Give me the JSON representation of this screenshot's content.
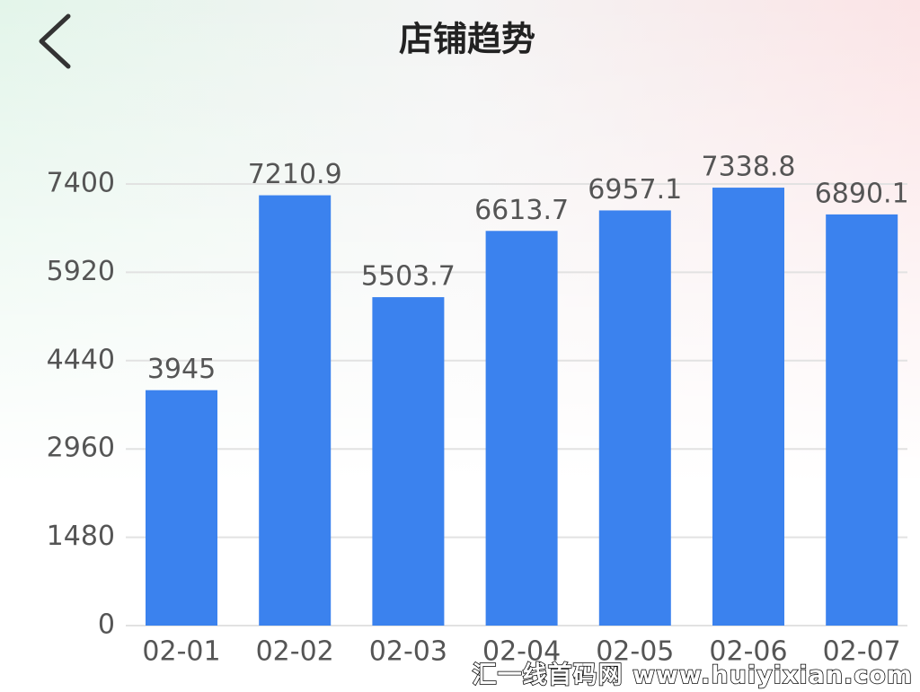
{
  "chart_data": {
    "type": "bar",
    "title": "店铺趋势",
    "categories": [
      "02-01",
      "02-02",
      "02-03",
      "02-04",
      "02-05",
      "02-06",
      "02-07"
    ],
    "values": [
      3945,
      7210.9,
      5503.7,
      6613.7,
      6957.1,
      7338.8,
      6890.1
    ],
    "color": "#3b82ee",
    "ylim": [
      0,
      7400
    ],
    "yticks": [
      0,
      1480,
      2960,
      4440,
      5920,
      7400
    ],
    "grid": true
  },
  "watermark": "汇一线首码网 www.huiyixian.com"
}
